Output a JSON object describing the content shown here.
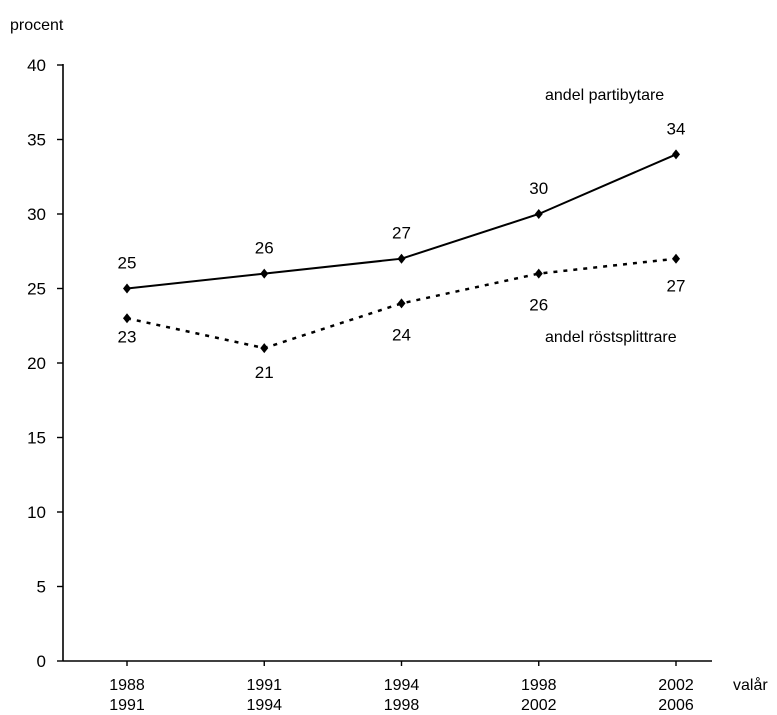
{
  "chart_data": {
    "type": "line",
    "ylabel": "procent",
    "xlabel": "valår",
    "ylim": [
      0,
      40
    ],
    "yticks": [
      0,
      5,
      10,
      15,
      20,
      25,
      30,
      35,
      40
    ],
    "categories": [
      [
        "1988",
        "1991"
      ],
      [
        "1991",
        "1994"
      ],
      [
        "1994",
        "1998"
      ],
      [
        "1998",
        "2002"
      ],
      [
        "2002",
        "2006"
      ]
    ],
    "series": [
      {
        "name": "andel partibytare",
        "style": "solid",
        "values": [
          25,
          26,
          27,
          30,
          34
        ]
      },
      {
        "name": "andel röstsplittrare",
        "style": "dotted",
        "values": [
          23,
          21,
          24,
          26,
          27
        ]
      }
    ],
    "grid": false,
    "color": "#000000"
  }
}
